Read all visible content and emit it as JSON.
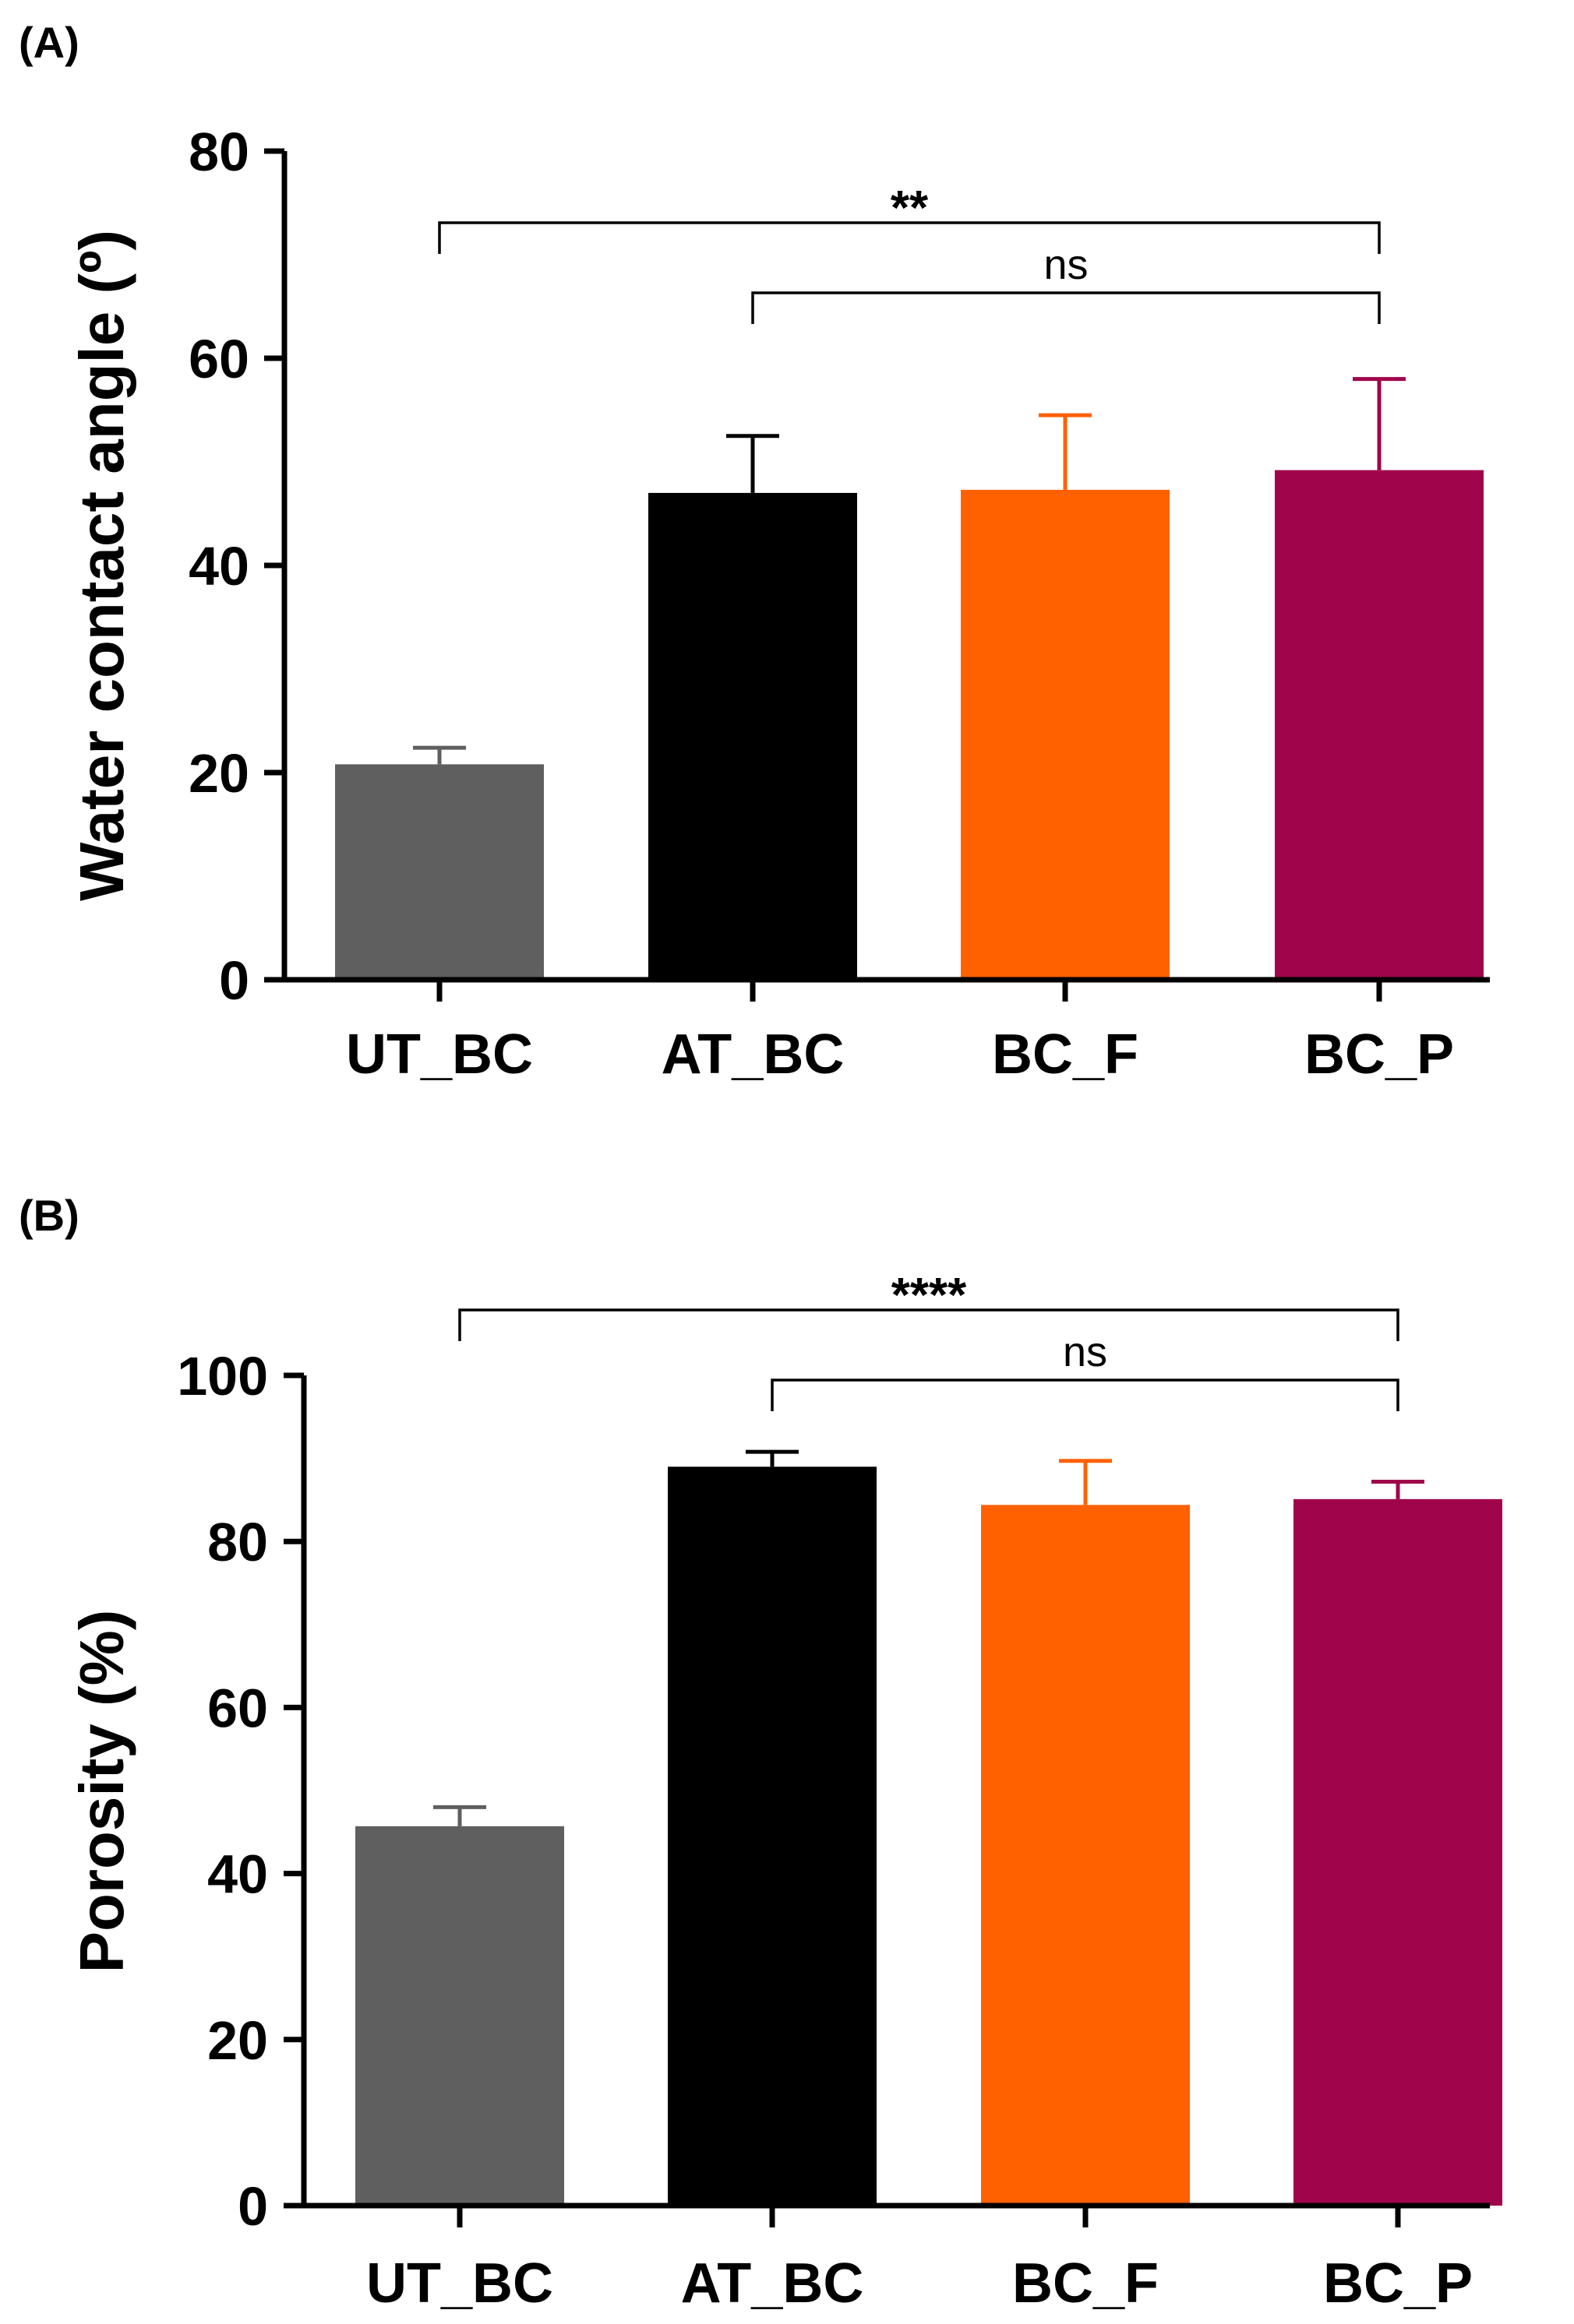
{
  "chart_data": [
    {
      "panel_label": "(A)",
      "type": "bar",
      "title": "",
      "xlabel": "",
      "ylabel": "Water contact angle (º)",
      "ylim": [
        0,
        80
      ],
      "yticks": [
        0,
        20,
        40,
        60,
        80
      ],
      "ytick_labels": [
        "0",
        "20",
        "40",
        "60",
        "80"
      ],
      "categories": [
        "UT_BC",
        "AT_BC",
        "BC_F",
        "BC_P"
      ],
      "values": [
        20.8,
        47.0,
        47.3,
        49.2
      ],
      "errors": [
        1.6,
        5.5,
        7.2,
        8.8
      ],
      "colors": [
        "#5f5f5f",
        "#000000",
        "#ff6100",
        "#a0044b"
      ],
      "significance": [
        {
          "from": 0,
          "to": 3,
          "label": "**"
        },
        {
          "from": 1,
          "to": 3,
          "label": "ns"
        }
      ]
    },
    {
      "panel_label": "(B)",
      "type": "bar",
      "title": "",
      "xlabel": "",
      "ylabel": "Porosity (%)",
      "ylim": [
        0,
        100
      ],
      "yticks": [
        0,
        20,
        40,
        60,
        80,
        100
      ],
      "ytick_labels": [
        "0",
        "20",
        "40",
        "60",
        "80",
        "100"
      ],
      "categories": [
        "UT_BC",
        "AT_BC",
        "BC_F",
        "BC_P"
      ],
      "values": [
        45.7,
        89.0,
        84.4,
        85.1
      ],
      "errors": [
        2.3,
        1.8,
        5.3,
        2.1
      ],
      "colors": [
        "#5f5f5f",
        "#000000",
        "#ff6100",
        "#a0044b"
      ],
      "significance": [
        {
          "from": 0,
          "to": 3,
          "label": "****"
        },
        {
          "from": 1,
          "to": 3,
          "label": "ns"
        }
      ]
    }
  ]
}
